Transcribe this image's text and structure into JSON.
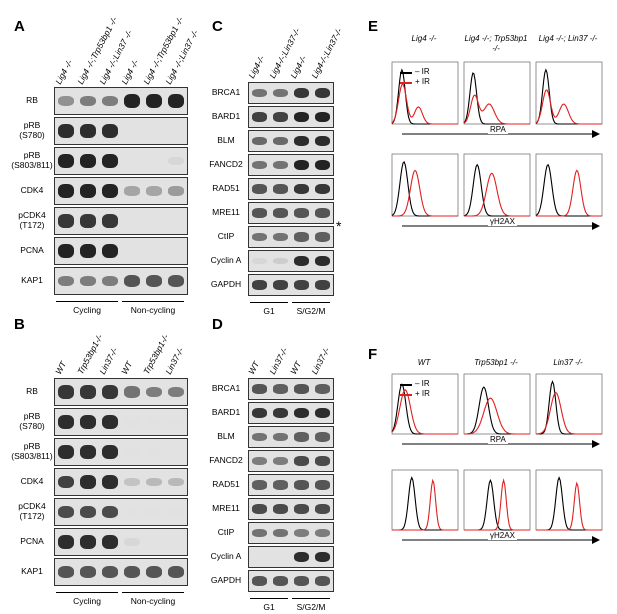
{
  "panels": {
    "A": {
      "label": "A",
      "lanes": [
        "Lig4 -/-",
        "Lig4 -/-;Trp53bp1 -/-",
        "Lig4 -/-;Lin37 -/-",
        "Lig4 -/-",
        "Lig4 -/-;Trp53bp1 -/-",
        "Lig4 -/-;Lin37 -/-"
      ],
      "rows": [
        "RB",
        "pRB (S780)",
        "pRB (S803/811)",
        "CDK4",
        "pCDK4 (T172)",
        "PCNA",
        "KAP1"
      ],
      "groups": [
        "Cycling",
        "Non-cycling"
      ]
    },
    "B": {
      "label": "B",
      "lanes": [
        "WT",
        "Trp53bp1-/-",
        "Lin37-/-",
        "WT",
        "Trp53bp1-/-",
        "Lin37-/-"
      ],
      "rows": [
        "RB",
        "pRB (S780)",
        "pRB (S803/811)",
        "CDK4",
        "pCDK4 (T172)",
        "PCNA",
        "KAP1"
      ],
      "groups": [
        "Cycling",
        "Non-cycling"
      ]
    },
    "C": {
      "label": "C",
      "lanes": [
        "Lig4-/-",
        "Lig4-/-;Lin37-/-",
        "Lig4-/-",
        "Lig4-/-;Lin37-/-"
      ],
      "rows": [
        "BRCA1",
        "BARD1",
        "BLM",
        "FANCD2",
        "RAD51",
        "MRE11",
        "CtIP",
        "Cyclin A",
        "GAPDH"
      ],
      "groups": [
        "G1",
        "S/G2/M"
      ],
      "asterisk": "*"
    },
    "D": {
      "label": "D",
      "lanes": [
        "WT",
        "Lin37-/-",
        "WT",
        "Lin37-/-"
      ],
      "rows": [
        "BRCA1",
        "BARD1",
        "BLM",
        "FANCD2",
        "RAD51",
        "MRE11",
        "CtIP",
        "Cyclin A",
        "GAPDH"
      ],
      "groups": [
        "G1",
        "S/G2/M"
      ]
    },
    "E": {
      "label": "E",
      "columns": [
        "Lig4 -/-",
        "Lig4 -/-; Trp53bp1 -/-",
        "Lig4 -/-; Lin37 -/-"
      ],
      "legend": [
        "– IR",
        "+ IR"
      ],
      "axes": [
        "RPA",
        "γH2AX"
      ]
    },
    "F": {
      "label": "F",
      "columns": [
        "WT",
        "Trp53bp1 -/-",
        "Lin37 -/-"
      ],
      "legend": [
        "– IR",
        "+ IR"
      ],
      "axes": [
        "RPA",
        "γH2AX"
      ]
    }
  },
  "colors": {
    "ir_minus": "#000000",
    "ir_plus": "#e02020"
  }
}
